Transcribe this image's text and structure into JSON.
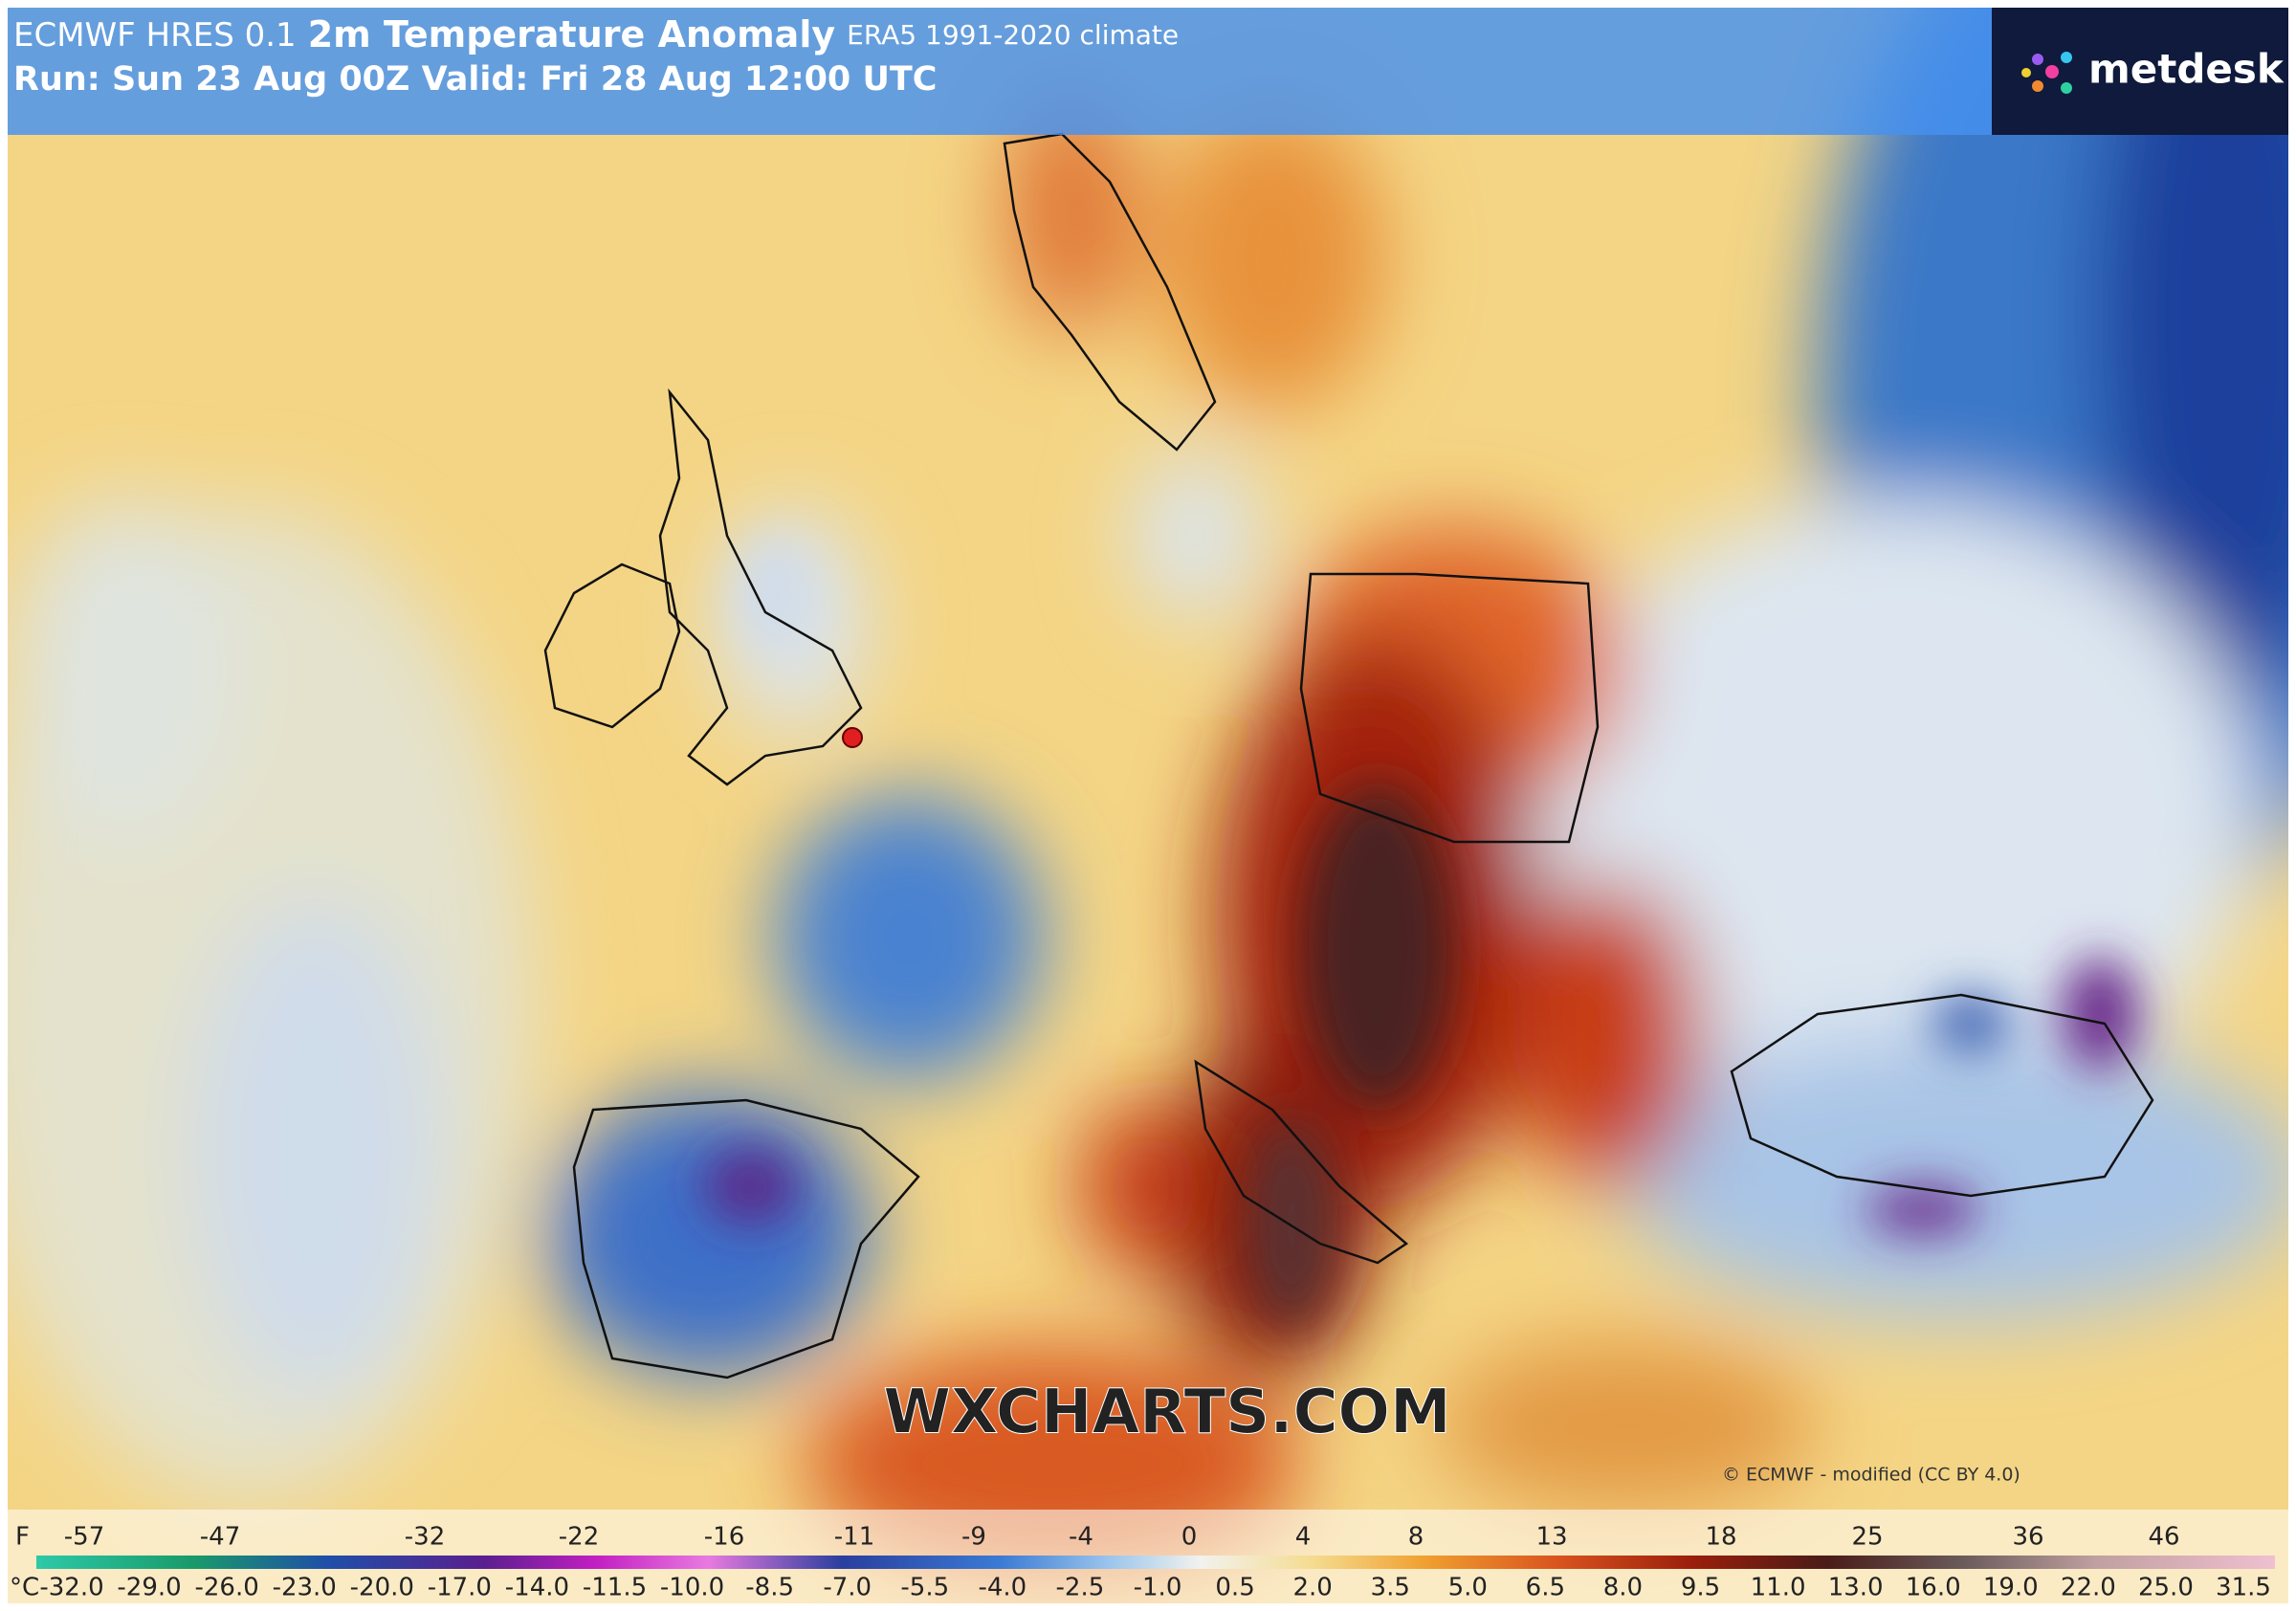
{
  "header": {
    "model": "ECMWF HRES 0.1",
    "title": "2m Temperature Anomaly",
    "climate": "ERA5 1991-2020 climate",
    "run": "Run: Sun 23 Aug 00Z Valid: Fri 28 Aug 12:00 UTC"
  },
  "logo": "metdesk",
  "watermark": "WXCHARTS.COM",
  "copyright": "© ECMWF - modified (CC BY 4.0)",
  "legend": {
    "fahrenheit_unit": "F",
    "fahrenheit_labels": [
      "-57",
      "-47",
      "-32",
      "-22",
      "-16",
      "-11",
      "-9",
      "-4",
      "0",
      "4",
      "8",
      "13",
      "18",
      "25",
      "36",
      "46"
    ],
    "celsius_unit": "°C",
    "celsius_labels": [
      "-32.0",
      "-29.0",
      "-26.0",
      "-23.0",
      "-20.0",
      "-17.0",
      "-14.0",
      "-11.5",
      "-10.0",
      "-8.5",
      "-7.0",
      "-5.5",
      "-4.0",
      "-2.5",
      "-1.0",
      "0.5",
      "2.0",
      "3.5",
      "5.0",
      "6.5",
      "8.0",
      "9.5",
      "11.0",
      "13.0",
      "16.0",
      "19.0",
      "22.0",
      "25.0",
      "31.5"
    ]
  }
}
